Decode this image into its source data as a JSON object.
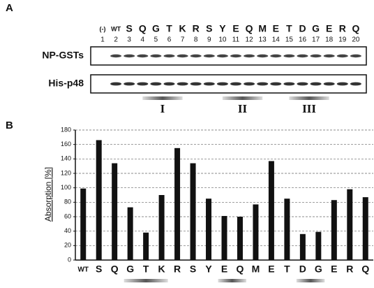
{
  "panel_a": {
    "label": "A",
    "lanes": [
      {
        "residue": "(-)",
        "number": 1
      },
      {
        "residue": "WT",
        "number": 2
      },
      {
        "residue": "S",
        "number": 3
      },
      {
        "residue": "Q",
        "number": 4
      },
      {
        "residue": "G",
        "number": 5
      },
      {
        "residue": "T",
        "number": 6
      },
      {
        "residue": "K",
        "number": 7
      },
      {
        "residue": "R",
        "number": 8
      },
      {
        "residue": "S",
        "number": 9
      },
      {
        "residue": "Y",
        "number": 10
      },
      {
        "residue": "E",
        "number": 11
      },
      {
        "residue": "Q",
        "number": 12
      },
      {
        "residue": "M",
        "number": 13
      },
      {
        "residue": "E",
        "number": 14
      },
      {
        "residue": "T",
        "number": 15
      },
      {
        "residue": "D",
        "number": 16
      },
      {
        "residue": "G",
        "number": 17
      },
      {
        "residue": "E",
        "number": 18
      },
      {
        "residue": "R",
        "number": 19
      },
      {
        "residue": "Q",
        "number": 20
      }
    ],
    "rows": [
      "NP-GSTs",
      "His-p48"
    ],
    "regions": [
      "I",
      "II",
      "III"
    ]
  },
  "chart_data": {
    "type": "bar",
    "panel_label": "B",
    "y_label": "Absorption [%]",
    "categories": [
      "WT",
      "S",
      "Q",
      "G",
      "T",
      "K",
      "R",
      "S",
      "Y",
      "E",
      "Q",
      "M",
      "E",
      "T",
      "D",
      "G",
      "E",
      "R",
      "Q"
    ],
    "values": [
      99,
      166,
      134,
      73,
      38,
      90,
      155,
      134,
      85,
      61,
      60,
      77,
      137,
      85,
      36,
      39,
      83,
      98,
      87
    ],
    "color": "#111111",
    "ylim": [
      0,
      180
    ],
    "yticks": [
      0,
      20,
      40,
      60,
      80,
      100,
      120,
      140,
      160,
      180
    ],
    "grid": true
  }
}
